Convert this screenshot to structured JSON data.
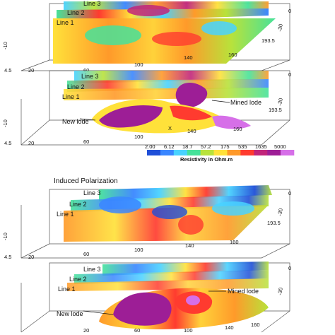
{
  "resistivity": {
    "panel_top": {
      "line_labels": [
        "Line 3",
        "Line 2",
        "Line 1"
      ],
      "x_ticks": [
        "20",
        "60",
        "100",
        "140",
        "160",
        "193.5"
      ],
      "y_ticks": [
        "4.5",
        "-10"
      ],
      "z_ticks": [
        "0",
        "-30"
      ]
    },
    "panel_bottom": {
      "line_labels": [
        "Line 3",
        "Line 2",
        "Line 1"
      ],
      "annotations": {
        "mined_lode": "Mined lode",
        "new_lode": "New lode"
      },
      "x_axis_label": "X",
      "x_ticks": [
        "20",
        "60",
        "100",
        "140",
        "160",
        "193.5"
      ],
      "y_ticks": [
        "4.5",
        "-10"
      ],
      "z_ticks": [
        "0",
        "-30"
      ]
    },
    "colorbar": {
      "tick_values": [
        "2.00",
        "6.12",
        "18.7",
        "57.2",
        "175",
        "535",
        "1635",
        "5000"
      ],
      "title": "Resistivity in Ohm.m",
      "colors": [
        "#1f4fd8",
        "#3a86ff",
        "#49d2ff",
        "#46e29a",
        "#b8e23b",
        "#ffe13a",
        "#ff9a2a",
        "#ff3b2f",
        "#c1247a",
        "#9d1e96",
        "#d66fe8"
      ]
    }
  },
  "induced_polarization": {
    "title": "Induced Polarization",
    "panel_top": {
      "line_labels": [
        "Line 3",
        "Line 2",
        "Line 1"
      ],
      "x_ticks": [
        "20",
        "60",
        "100",
        "140",
        "160",
        "193.5"
      ],
      "y_ticks": [
        "4.5",
        "-10"
      ],
      "z_ticks": [
        "0",
        "-30"
      ]
    },
    "panel_bottom": {
      "line_labels": [
        "Line 3",
        "Line 2",
        "Line 1"
      ],
      "annotations": {
        "mined_lode": "Mined lode",
        "new_lode": "New lode"
      },
      "x_ticks": [
        "20",
        "60",
        "100",
        "140",
        "160"
      ],
      "z_ticks": [
        "0",
        "-30"
      ]
    }
  }
}
